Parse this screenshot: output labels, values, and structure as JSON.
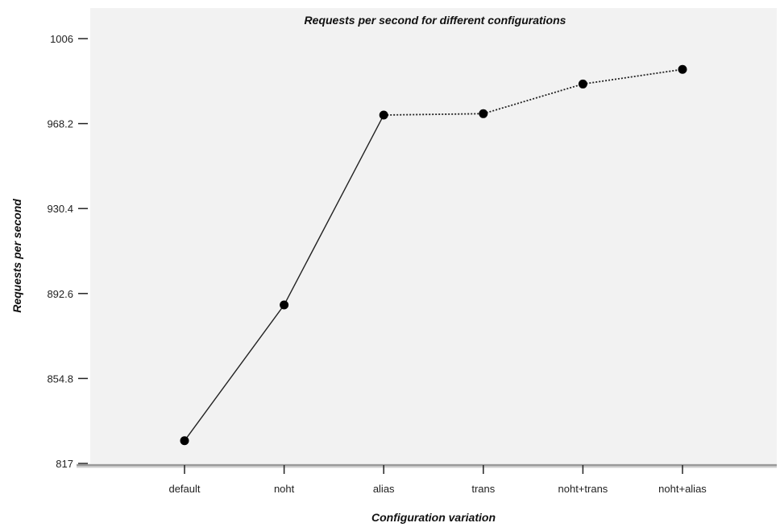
{
  "chart_data": {
    "type": "line",
    "title": "Requests per second for different configurations",
    "xlabel": "Configuration variation",
    "ylabel": "Requests per second",
    "categories": [
      "default",
      "noht",
      "alias",
      "trans",
      "noht+trans",
      "noht+alias"
    ],
    "values": [
      827.1,
      887.5,
      972.0,
      972.6,
      985.8,
      992.3
    ],
    "line_styles": [
      "solid",
      "solid",
      "dotted",
      "dotted",
      "dotted"
    ],
    "yticks": [
      "817",
      "854.8",
      "892.6",
      "930.4",
      "968.2",
      "1006"
    ],
    "ylim": [
      817,
      1006
    ],
    "grid": false,
    "colors": {
      "plot_background": "#f2f2f2",
      "line": "#222222",
      "marker": "#000000",
      "axis": "#999999"
    }
  }
}
